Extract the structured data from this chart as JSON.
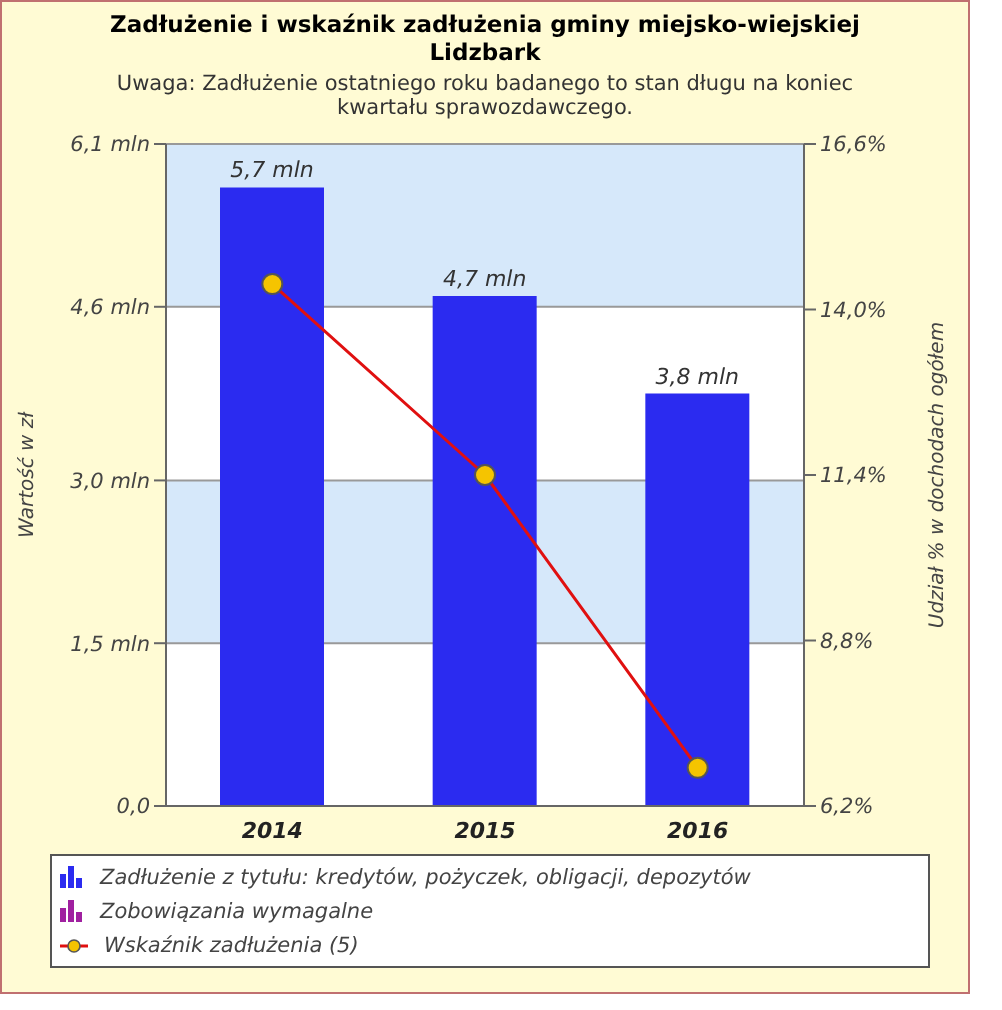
{
  "chart_data": {
    "type": "bar",
    "title": "Zadłużenie i wskaźnik zadłużenia gminy miejsko-wiejskiej Lidzbark",
    "subtitle": "Uwaga: Zadłużenie ostatniego roku badanego to stan długu na koniec kwartału sprawozdawczego.",
    "ylabel": "Wartość w zł",
    "y2label": "Udział % w dochodach ogółem",
    "categories": [
      "2014",
      "2015",
      "2016"
    ],
    "series": [
      {
        "name": "Zadłużenie z tytułu: kredytów, pożyczek, obligacji, depozytów",
        "color": "#2b2bf0",
        "values": [
          5.7,
          4.7,
          3.8
        ],
        "value_labels": [
          "5,7 mln",
          "4,7 mln",
          "3,8 mln"
        ]
      },
      {
        "name": "Zobowiązania wymagalne",
        "color": "#a020a0",
        "values": [
          null,
          null,
          null
        ]
      },
      {
        "name": "Wskaźnik zadłużenia (5)",
        "type": "line",
        "axis": "y2",
        "color": "#e01010",
        "marker": "circle",
        "values": [
          14.4,
          11.4,
          6.8
        ]
      }
    ],
    "ylim": [
      0,
      6.1
    ],
    "yticks": [
      {
        "value": 0,
        "label": "0,0"
      },
      {
        "value": 1.5,
        "label": "1,5 mln"
      },
      {
        "value": 3.0,
        "label": "3,0 mln"
      },
      {
        "value": 4.6,
        "label": "4,6 mln"
      },
      {
        "value": 6.1,
        "label": "6,1 mln"
      }
    ],
    "y2lim": [
      6.2,
      16.6
    ],
    "y2ticks": [
      {
        "value": 6.2,
        "label": "6,2%"
      },
      {
        "value": 8.8,
        "label": "8,8%"
      },
      {
        "value": 11.4,
        "label": "11,4%"
      },
      {
        "value": 14.0,
        "label": "14,0%"
      },
      {
        "value": 16.6,
        "label": "16,6%"
      }
    ],
    "grid": "y",
    "legend": "bottom"
  }
}
